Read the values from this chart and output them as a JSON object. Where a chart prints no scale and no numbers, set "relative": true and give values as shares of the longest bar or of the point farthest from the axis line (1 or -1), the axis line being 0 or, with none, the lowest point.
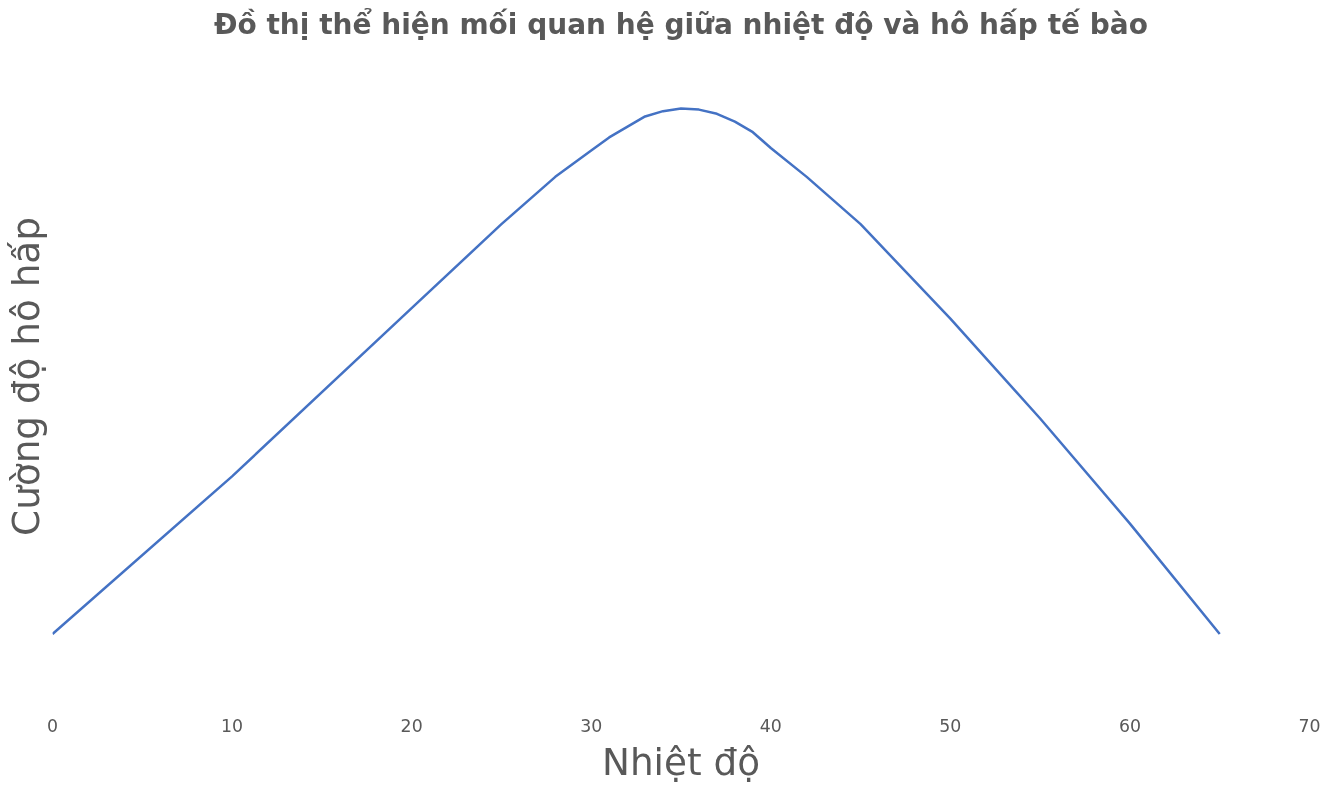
{
  "chart_data": {
    "type": "line",
    "title": "Đồ thị thể hiện mối quan hệ giữa nhiệt độ và hô hấp tế bào",
    "xlabel": "Nhiệt độ",
    "ylabel": "Cường độ hô hấp",
    "relative": true,
    "x": [
      0,
      10,
      20,
      25,
      28,
      30,
      31,
      32,
      33,
      34,
      35,
      36,
      37,
      38,
      39,
      40,
      42,
      45,
      50,
      55,
      60,
      65
    ],
    "series": [
      {
        "color": "#4472c4",
        "values": [
          0,
          0.3,
          0.62,
          0.78,
          0.87,
          0.92,
          0.945,
          0.965,
          0.985,
          0.995,
          1,
          0.998,
          0.99,
          0.975,
          0.955,
          0.925,
          0.87,
          0.78,
          0.6,
          0.41,
          0.21,
          0
        ]
      }
    ],
    "xlim": [
      0,
      70
    ],
    "xticks": [
      0,
      10,
      20,
      30,
      40,
      50,
      60,
      70
    ],
    "grid": false,
    "marker": "none",
    "line_style": "solid"
  }
}
